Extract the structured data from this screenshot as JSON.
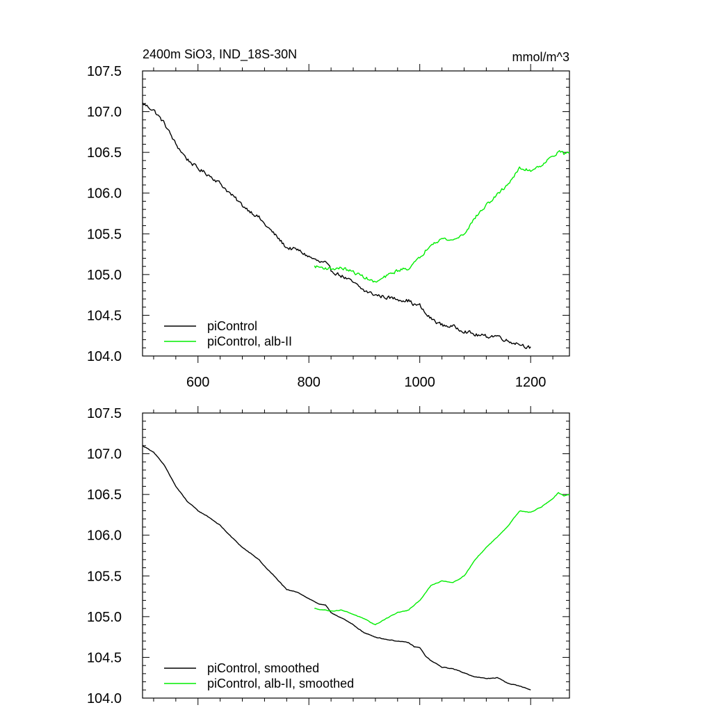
{
  "colors": {
    "control": "#000000",
    "alb": "#00ee00",
    "axis": "#000000"
  },
  "chart_data": [
    {
      "type": "line",
      "panel": "top",
      "title": "2400m SiO3, IND_18S-30N",
      "units": "mmol/m^3",
      "xlabel": "",
      "ylabel": "",
      "xlim": [
        500,
        1270
      ],
      "ylim": [
        104.0,
        107.5
      ],
      "xticks": [
        600,
        800,
        1000,
        1200
      ],
      "xtick_labels": [
        "600",
        "800",
        "1000",
        "1200"
      ],
      "yticks": [
        104.0,
        104.5,
        105.0,
        105.5,
        106.0,
        106.5,
        107.0,
        107.5
      ],
      "ytick_labels": [
        "104.0",
        "104.5",
        "105.0",
        "105.5",
        "106.0",
        "106.5",
        "107.0",
        "107.5"
      ],
      "legend_position": "bottom-left",
      "series": [
        {
          "name": "piControl",
          "color": "#000000",
          "noise": 0.035,
          "x": [
            500,
            520,
            540,
            560,
            580,
            600,
            620,
            640,
            660,
            680,
            700,
            710,
            720,
            740,
            760,
            780,
            800,
            820,
            830,
            840,
            860,
            880,
            900,
            920,
            940,
            960,
            980,
            990,
            1000,
            1010,
            1020,
            1040,
            1060,
            1080,
            1100,
            1120,
            1140,
            1160,
            1180,
            1200
          ],
          "y": [
            107.1,
            107.02,
            106.85,
            106.6,
            106.42,
            106.3,
            106.22,
            106.12,
            105.98,
            105.85,
            105.75,
            105.7,
            105.62,
            105.48,
            105.33,
            105.3,
            105.22,
            105.15,
            105.14,
            105.05,
            104.98,
            104.9,
            104.8,
            104.75,
            104.72,
            104.7,
            104.68,
            104.63,
            104.62,
            104.52,
            104.46,
            104.38,
            104.36,
            104.31,
            104.26,
            104.24,
            104.25,
            104.18,
            104.15,
            104.1
          ]
        },
        {
          "name": "piControl, alb-II",
          "color": "#00ee00",
          "noise": 0.03,
          "x": [
            810,
            840,
            860,
            880,
            900,
            920,
            940,
            960,
            980,
            1000,
            1020,
            1040,
            1060,
            1080,
            1100,
            1120,
            1140,
            1160,
            1180,
            1200,
            1220,
            1240,
            1250,
            1260,
            1270
          ],
          "y": [
            105.1,
            105.07,
            105.08,
            105.03,
            104.97,
            104.9,
            104.98,
            105.05,
            105.08,
            105.2,
            105.38,
            105.44,
            105.42,
            105.5,
            105.7,
            105.85,
            105.98,
            106.12,
            106.3,
            106.28,
            106.35,
            106.45,
            106.52,
            106.48,
            106.5
          ]
        }
      ]
    },
    {
      "type": "line",
      "panel": "bottom",
      "title": "",
      "xlabel": "",
      "ylabel": "",
      "xlim": [
        500,
        1270
      ],
      "ylim": [
        104.0,
        107.5
      ],
      "xticks": [
        600,
        800,
        1000,
        1200
      ],
      "xtick_labels": [],
      "yticks": [
        104.0,
        104.5,
        105.0,
        105.5,
        106.0,
        106.5,
        107.0,
        107.5
      ],
      "ytick_labels": [
        "104.0",
        "104.5",
        "105.0",
        "105.5",
        "106.0",
        "106.5",
        "107.0",
        "107.5"
      ],
      "legend_position": "bottom-left",
      "series": [
        {
          "name": "piControl, smoothed",
          "color": "#000000",
          "noise": 0.006,
          "x": [
            500,
            520,
            540,
            560,
            580,
            600,
            620,
            640,
            660,
            680,
            700,
            710,
            720,
            740,
            760,
            780,
            800,
            820,
            830,
            840,
            860,
            880,
            900,
            920,
            940,
            960,
            980,
            990,
            1000,
            1010,
            1020,
            1040,
            1060,
            1080,
            1100,
            1120,
            1140,
            1160,
            1180,
            1200
          ],
          "y": [
            107.1,
            107.02,
            106.85,
            106.6,
            106.42,
            106.3,
            106.22,
            106.12,
            105.98,
            105.85,
            105.75,
            105.7,
            105.62,
            105.48,
            105.33,
            105.3,
            105.22,
            105.15,
            105.14,
            105.05,
            104.98,
            104.9,
            104.8,
            104.75,
            104.72,
            104.7,
            104.68,
            104.63,
            104.62,
            104.52,
            104.46,
            104.38,
            104.36,
            104.31,
            104.26,
            104.24,
            104.25,
            104.18,
            104.15,
            104.1
          ]
        },
        {
          "name": "piControl, alb-II, smoothed",
          "color": "#00ee00",
          "noise": 0.006,
          "x": [
            810,
            840,
            860,
            880,
            900,
            920,
            940,
            960,
            980,
            1000,
            1020,
            1040,
            1060,
            1080,
            1100,
            1120,
            1140,
            1160,
            1180,
            1200,
            1220,
            1240,
            1250,
            1260,
            1270
          ],
          "y": [
            105.1,
            105.07,
            105.08,
            105.03,
            104.97,
            104.9,
            104.98,
            105.05,
            105.08,
            105.2,
            105.38,
            105.44,
            105.42,
            105.5,
            105.7,
            105.85,
            105.98,
            106.12,
            106.3,
            106.28,
            106.35,
            106.45,
            106.52,
            106.48,
            106.5
          ]
        }
      ]
    }
  ]
}
